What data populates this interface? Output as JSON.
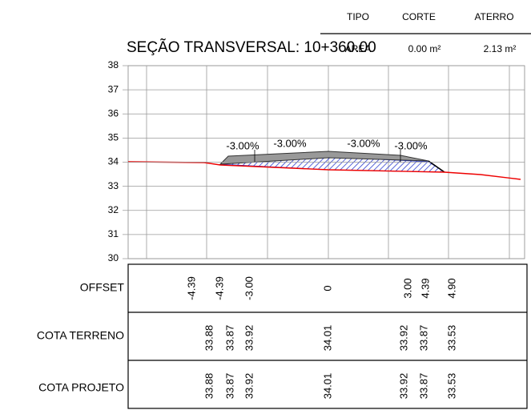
{
  "header": {
    "columns": [
      "TIPO",
      "CORTE",
      "ATERRO"
    ],
    "row": [
      "ÁREA",
      "0.00 m²",
      "2.13 m²"
    ]
  },
  "title": "SEÇÃO TRANSVERSAL: 10+360.00",
  "axis": {
    "ylim": [
      30,
      38
    ],
    "yticks": [
      30,
      31,
      32,
      33,
      34,
      35,
      36,
      37,
      38
    ]
  },
  "slopes": [
    "-3.00%",
    "-3.00%",
    "-3.00%",
    "-3.00%"
  ],
  "table": {
    "labels": [
      "OFFSET",
      "COTA TERRENO",
      "COTA PROJETO"
    ],
    "rows": [
      [
        "-4.39",
        "-4.39",
        "-3.00",
        "0",
        "3.00",
        "4.39",
        "4.90"
      ],
      [
        "33.88",
        "33.87",
        "33.92",
        "34.01",
        "33.92",
        "33.87",
        "33.53"
      ],
      [
        "33.88",
        "33.87",
        "33.92",
        "34.01",
        "33.92",
        "33.87",
        "33.53"
      ]
    ]
  }
}
